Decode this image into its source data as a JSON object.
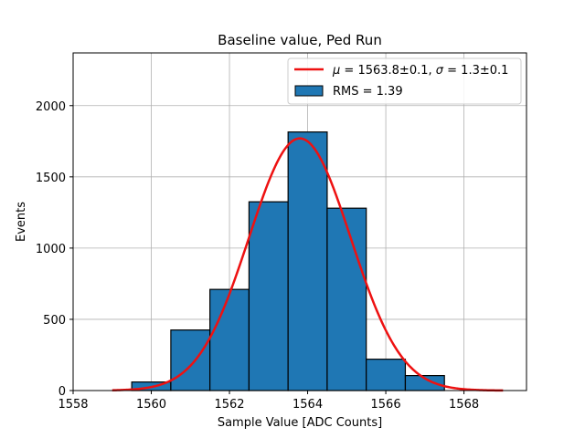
{
  "chart_data": {
    "type": "bar",
    "title": "Baseline value, Ped Run",
    "xlabel": "Sample Value [ADC Counts]",
    "ylabel": "Events",
    "xlim": [
      1558,
      1569.6
    ],
    "ylim": [
      0,
      2370
    ],
    "xticks": [
      "1558",
      "1560",
      "1562",
      "1564",
      "1566",
      "1568"
    ],
    "xtick_values": [
      1558,
      1560,
      1562,
      1564,
      1566,
      1568
    ],
    "yticks": [
      "0",
      "500",
      "1000",
      "1500",
      "2000"
    ],
    "ytick_values": [
      0,
      500,
      1000,
      1500,
      2000
    ],
    "grid": true,
    "legend_position": "top-right",
    "histogram": {
      "name": "RMS = 1.39",
      "color": "#1f77b4",
      "edge_color": "#000000",
      "bins": [
        {
          "x0": 1559.5,
          "x1": 1560.5,
          "value": 60
        },
        {
          "x0": 1560.5,
          "x1": 1561.5,
          "value": 425
        },
        {
          "x0": 1561.5,
          "x1": 1562.5,
          "value": 710
        },
        {
          "x0": 1562.5,
          "x1": 1563.5,
          "value": 1325
        },
        {
          "x0": 1563.5,
          "x1": 1564.5,
          "value": 1815
        },
        {
          "x0": 1564.5,
          "x1": 1565.5,
          "value": 1280
        },
        {
          "x0": 1565.5,
          "x1": 1566.5,
          "value": 220
        },
        {
          "x0": 1566.5,
          "x1": 1567.5,
          "value": 105
        }
      ]
    },
    "fit": {
      "type": "gaussian",
      "label_mu_sym": "μ",
      "label_mu_val": " = 1563.8±0.1, ",
      "label_sigma_sym": "σ",
      "label_sigma_val": " = 1.3±0.1",
      "mu": 1563.8,
      "sigma": 1.3,
      "amplitude": 1770,
      "x_range": [
        1559.0,
        1569.0
      ],
      "color": "#ee1111"
    }
  }
}
